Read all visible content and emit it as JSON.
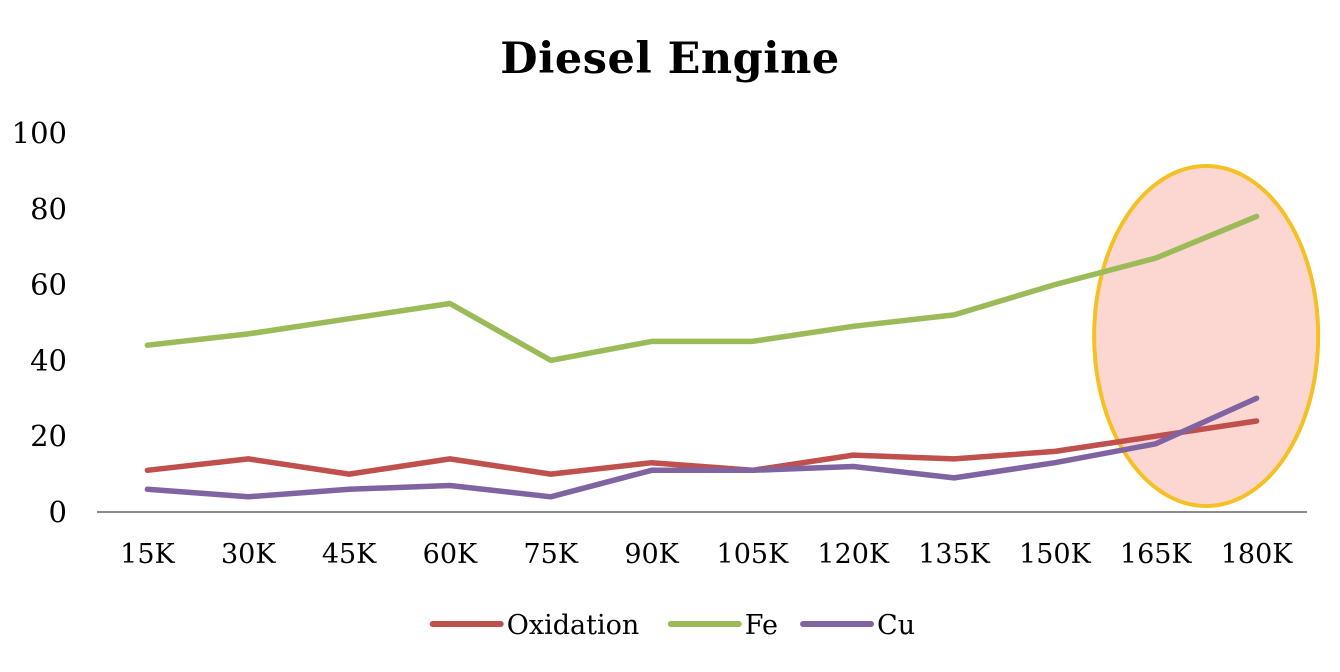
{
  "chart_data": {
    "type": "line",
    "title": "Diesel Engine",
    "xlabel": "",
    "ylabel": "",
    "ylim": [
      0,
      100
    ],
    "yticks": [
      0,
      20,
      40,
      60,
      80,
      100
    ],
    "categories": [
      "15K",
      "30K",
      "45K",
      "60K",
      "75K",
      "90K",
      "105K",
      "120K",
      "135K",
      "150K",
      "165K",
      "180K"
    ],
    "series": [
      {
        "name": "Oxidation",
        "color": "#c0504d",
        "values": [
          11,
          14,
          10,
          14,
          10,
          13,
          11,
          15,
          14,
          16,
          20,
          24
        ]
      },
      {
        "name": "Fe",
        "color": "#9bbb59",
        "values": [
          44,
          47,
          51,
          55,
          40,
          45,
          45,
          49,
          52,
          60,
          67,
          78
        ]
      },
      {
        "name": "Cu",
        "color": "#8064a2",
        "values": [
          6,
          4,
          6,
          7,
          4,
          11,
          11,
          12,
          9,
          13,
          18,
          30
        ]
      }
    ],
    "grid": false,
    "legend_position": "bottom",
    "annotation": {
      "shape": "ellipse",
      "fill": "#fcd7d1",
      "stroke": "#f5c023",
      "covers_categories": [
        "165K",
        "180K"
      ]
    }
  }
}
